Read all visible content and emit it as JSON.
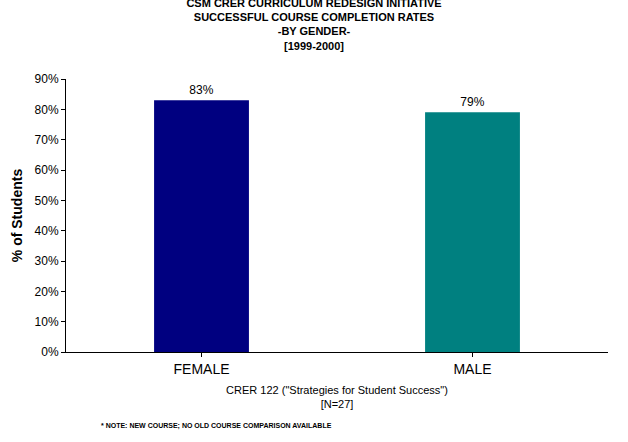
{
  "chart_data": {
    "type": "bar",
    "title": "CSM CRER CURRICULUM REDESIGN INITIATIVE\nSUCCESSFUL COURSE COMPLETION RATES\n-BY GENDER-\n[1999-2000]",
    "x_label": "CRER 122 (\"Strategies for Student Success\")\n[N=27]",
    "y_label": "% of Students",
    "categories": [
      "FEMALE",
      "MALE"
    ],
    "values": [
      83,
      79
    ],
    "value_labels": [
      "83%",
      "79%"
    ],
    "data_labels": true,
    "colors": [
      "#000080",
      "#008080"
    ],
    "ylim": [
      0,
      90
    ],
    "yticks": [
      {
        "value": 0,
        "label": "0%"
      },
      {
        "value": 10,
        "label": "10%"
      },
      {
        "value": 20,
        "label": "20%"
      },
      {
        "value": 30,
        "label": "30%"
      },
      {
        "value": 40,
        "label": "40%"
      },
      {
        "value": 50,
        "label": "50%"
      },
      {
        "value": 60,
        "label": "60%"
      },
      {
        "value": 70,
        "label": "70%"
      },
      {
        "value": 80,
        "label": "80%"
      },
      {
        "value": 90,
        "label": "90%"
      }
    ],
    "grid": false,
    "annotations": [
      "* NOTE: NEW COURSE; NO OLD COURSE COMPARISON AVAILABLE"
    ]
  }
}
